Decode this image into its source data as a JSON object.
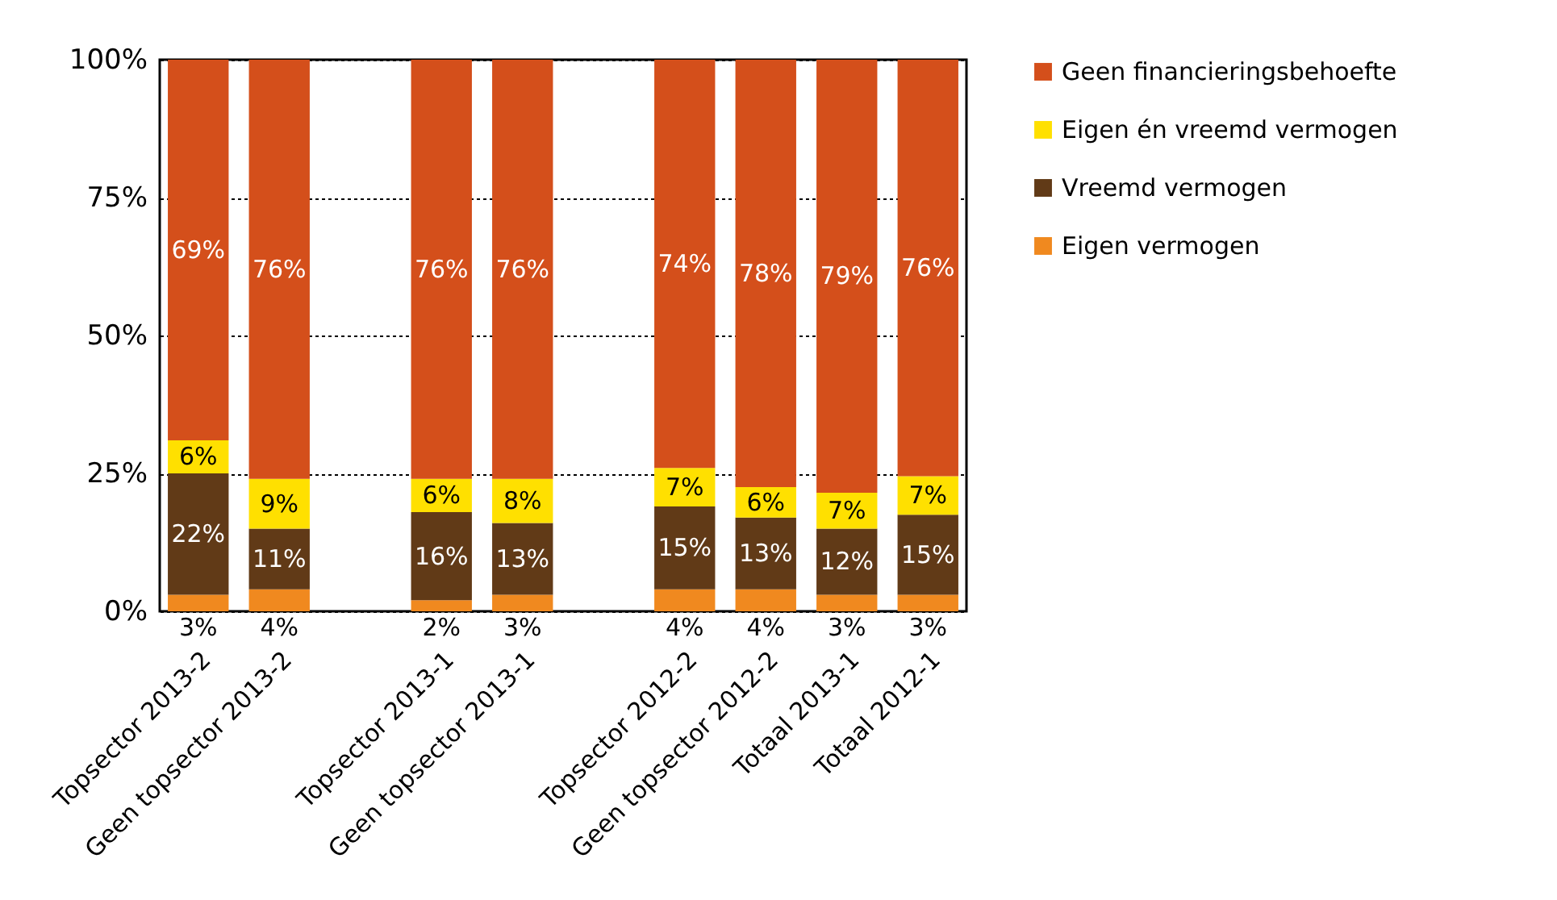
{
  "chart_data": {
    "type": "bar",
    "stacked": true,
    "categories": [
      "Topsector 2013-2",
      "Geen topsector 2013-2",
      null,
      "Topsector 2013-1",
      "Geen topsector 2013-1",
      null,
      "Topsector 2012-2",
      "Geen topsector 2012-2",
      "Totaal 2013-1",
      "Totaal 2012-1"
    ],
    "series": [
      {
        "name": "Eigen vermogen",
        "color": "#f0891f",
        "values": [
          3,
          4,
          null,
          2,
          3,
          null,
          4,
          4,
          3,
          3
        ],
        "value_labels": [
          "3%",
          "4%",
          null,
          "2%",
          "3%",
          null,
          "4%",
          "4%",
          "3%",
          "3%"
        ]
      },
      {
        "name": "Vreemd vermogen",
        "color": "#613a17",
        "values": [
          22,
          11,
          null,
          16,
          13,
          null,
          15,
          13,
          12,
          14.5
        ],
        "value_labels": [
          "22%",
          "11%",
          null,
          "16%",
          "13%",
          null,
          "15%",
          "13%",
          "12%",
          "15%"
        ]
      },
      {
        "name": "Eigen én vreemd vermogen",
        "color": "#ffe000",
        "values": [
          6,
          9,
          null,
          6,
          8,
          null,
          7,
          5.5,
          6.5,
          7
        ],
        "value_labels": [
          "6%",
          "9%",
          null,
          "6%",
          "8%",
          null,
          "7%",
          "6%",
          "7%",
          "7%"
        ]
      },
      {
        "name": "Geen financieringsbehoefte",
        "color": "#d44f1b",
        "values": [
          69,
          76,
          null,
          76,
          76,
          null,
          74,
          77.5,
          78.5,
          75.5
        ],
        "value_labels": [
          "69%",
          "76%",
          null,
          "76%",
          "76%",
          null,
          "74%",
          "78%",
          "79%",
          "76%"
        ]
      }
    ],
    "ylim": [
      0,
      100
    ],
    "yticks": [
      {
        "value": 0,
        "label": "0%"
      },
      {
        "value": 25,
        "label": "25%"
      },
      {
        "value": 50,
        "label": "50%"
      },
      {
        "value": 75,
        "label": "75%"
      },
      {
        "value": 100,
        "label": "100%"
      }
    ],
    "grid": "y",
    "legend": "right"
  }
}
